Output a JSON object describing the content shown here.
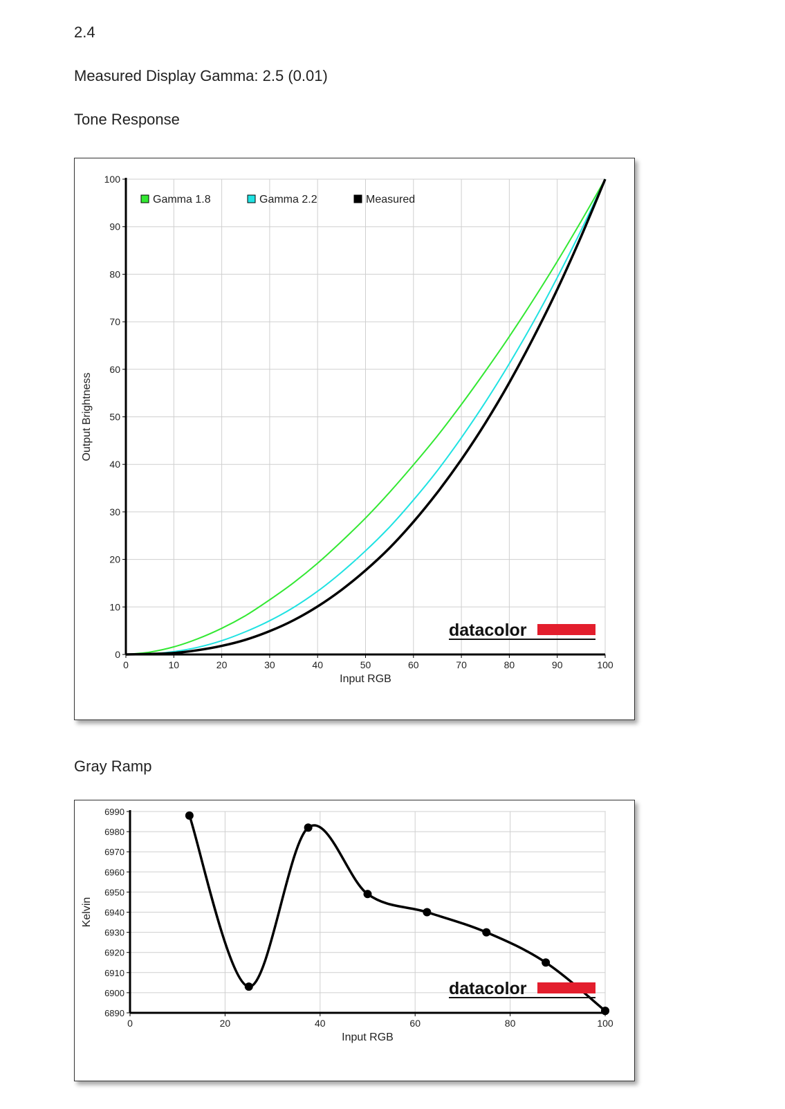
{
  "header": {
    "gamma_target": "2.4",
    "measured_gamma": "Measured Display Gamma: 2.5 (0.01)"
  },
  "sections": {
    "tone_title": "Tone Response",
    "gray_title": "Gray Ramp"
  },
  "brand": {
    "logo_text": "datacolor",
    "logo_color": "#e31e2d"
  },
  "chart_data": [
    {
      "type": "line",
      "title": "Tone Response",
      "xlabel": "Input RGB",
      "ylabel": "Output Brightness",
      "xlim": [
        0,
        100
      ],
      "ylim": [
        0,
        100
      ],
      "xticks": [
        0,
        10,
        20,
        30,
        40,
        50,
        60,
        70,
        80,
        90,
        100
      ],
      "yticks": [
        0,
        10,
        20,
        30,
        40,
        50,
        60,
        70,
        80,
        90,
        100
      ],
      "grid": true,
      "legend": "top-left",
      "series": [
        {
          "name": "Gamma 1.8",
          "color": "#33e833",
          "x": [
            0,
            5,
            10,
            15,
            20,
            25,
            30,
            35,
            40,
            45,
            50,
            55,
            60,
            65,
            70,
            75,
            80,
            85,
            90,
            95,
            100
          ],
          "y": [
            0,
            0.5,
            1.6,
            3.3,
            5.5,
            8.2,
            11.5,
            15.1,
            19.2,
            23.8,
            28.7,
            34.1,
            39.9,
            46.0,
            52.6,
            59.6,
            66.9,
            74.6,
            82.7,
            91.2,
            100
          ]
        },
        {
          "name": "Gamma 2.2",
          "color": "#1fe2e2",
          "x": [
            0,
            5,
            10,
            15,
            20,
            25,
            30,
            35,
            40,
            45,
            50,
            55,
            60,
            65,
            70,
            75,
            80,
            85,
            90,
            95,
            100
          ],
          "y": [
            0,
            0.1,
            0.6,
            1.5,
            2.9,
            4.8,
            7.1,
            9.9,
            13.3,
            17.3,
            21.8,
            26.8,
            32.5,
            38.7,
            45.6,
            53.1,
            61.2,
            69.9,
            79.3,
            89.3,
            100
          ]
        },
        {
          "name": "Measured",
          "color": "#000000",
          "x": [
            0,
            5,
            10,
            15,
            20,
            25,
            30,
            35,
            40,
            45,
            50,
            55,
            60,
            65,
            70,
            75,
            80,
            85,
            90,
            95,
            100
          ],
          "y": [
            0,
            0.1,
            0.3,
            0.9,
            1.8,
            3.1,
            4.9,
            7.2,
            10.1,
            13.6,
            17.7,
            22.4,
            27.9,
            34.1,
            41.0,
            48.7,
            57.2,
            66.6,
            76.8,
            88.0,
            100
          ]
        }
      ]
    },
    {
      "type": "line",
      "title": "Gray Ramp",
      "xlabel": "Input RGB",
      "ylabel": "Kelvin",
      "xlim": [
        0,
        100
      ],
      "ylim": [
        6890,
        6990
      ],
      "xticks": [
        0,
        20,
        40,
        60,
        80,
        100
      ],
      "yticks": [
        6890,
        6900,
        6910,
        6920,
        6930,
        6940,
        6950,
        6960,
        6970,
        6980,
        6990
      ],
      "grid": true,
      "series": [
        {
          "name": "",
          "color": "#000000",
          "x": [
            12.5,
            25,
            37.5,
            50,
            62.5,
            75,
            87.5,
            100
          ],
          "y": [
            6988,
            6903,
            6982,
            6949,
            6940,
            6930,
            6915,
            6891
          ]
        }
      ]
    }
  ]
}
